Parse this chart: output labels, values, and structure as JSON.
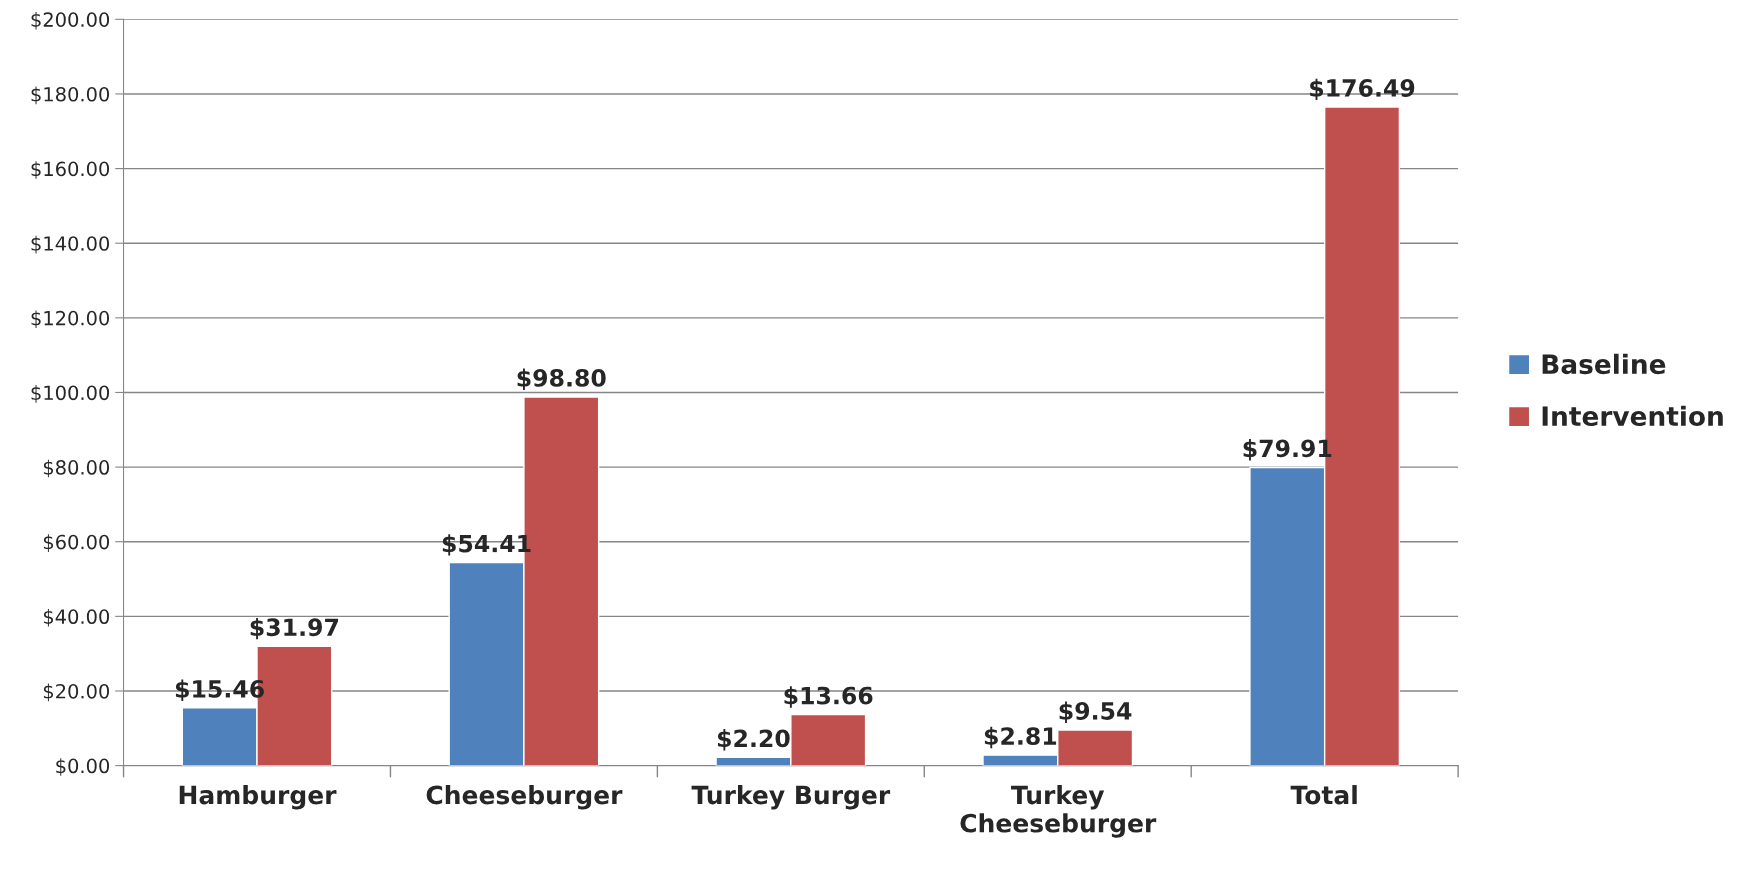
{
  "chart_data": {
    "type": "bar",
    "categories": [
      "Hamburger",
      "Cheeseburger",
      "Turkey Burger",
      "Turkey\nCheeseburger",
      "Total"
    ],
    "series": [
      {
        "name": "Baseline",
        "color": "#4f81bd",
        "values": [
          15.46,
          54.41,
          2.2,
          2.81,
          79.91
        ],
        "value_labels": [
          "$15.46",
          "$54.41",
          "$2.20",
          "$2.81",
          "$79.91"
        ]
      },
      {
        "name": "Intervention",
        "color": "#c0504d",
        "values": [
          31.97,
          98.8,
          13.66,
          9.54,
          176.49
        ],
        "value_labels": [
          "$31.97",
          "$98.80",
          "$13.66",
          "$9.54",
          "$176.49"
        ]
      }
    ],
    "ylim": [
      0,
      200
    ],
    "yticks": [
      {
        "value": 0,
        "label": "$0.00"
      },
      {
        "value": 20,
        "label": "$20.00"
      },
      {
        "value": 40,
        "label": "$40.00"
      },
      {
        "value": 60,
        "label": "$60.00"
      },
      {
        "value": 80,
        "label": "$80.00"
      },
      {
        "value": 100,
        "label": "$100.00"
      },
      {
        "value": 120,
        "label": "$120.00"
      },
      {
        "value": 140,
        "label": "$140.00"
      },
      {
        "value": 160,
        "label": "$160.00"
      },
      {
        "value": 180,
        "label": "$180.00"
      },
      {
        "value": 200,
        "label": "$200.00"
      }
    ],
    "grid": "y",
    "legend": "right"
  }
}
